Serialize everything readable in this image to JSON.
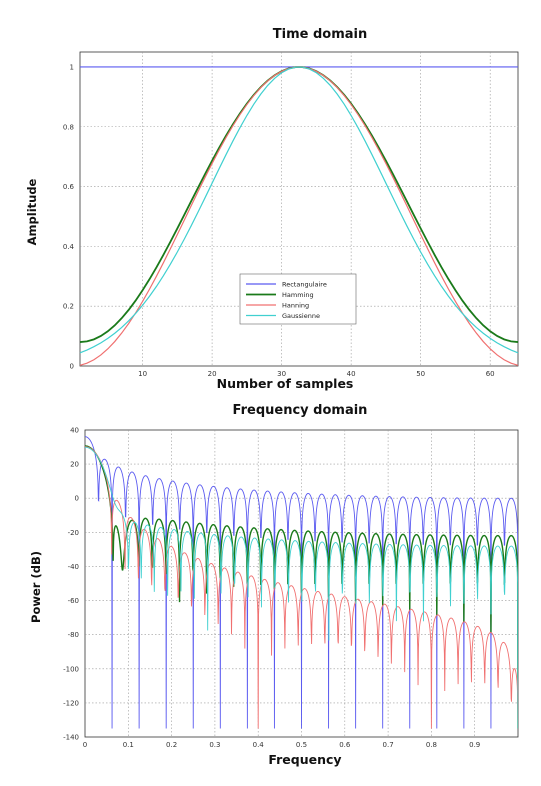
{
  "chart_data": [
    {
      "type": "line",
      "title": "Time domain",
      "xlabel": "Number of samples",
      "ylabel": "Amplitude",
      "xlim": [
        1,
        64
      ],
      "ylim": [
        0,
        1.05
      ],
      "xticks": [
        10,
        20,
        30,
        40,
        50,
        60
      ],
      "yticks": [
        0,
        0.2,
        0.4,
        0.6,
        0.8,
        1
      ],
      "ytick_labels": [
        "0",
        "0.2",
        "0.4",
        "0.6",
        "0.8",
        "1"
      ],
      "grid": true,
      "legend_position": "lower-center",
      "series": [
        {
          "name": "Rectangulaire",
          "color": "#5b5bf0",
          "formula": "rectangular",
          "n": 64
        },
        {
          "name": "Hamming",
          "color": "#1a7a1a",
          "formula": "hamming",
          "n": 64
        },
        {
          "name": "Hanning",
          "color": "#f07070",
          "formula": "hanning",
          "n": 64
        },
        {
          "name": "Gaussienne",
          "color": "#40d0d0",
          "formula": "gaussian",
          "sigma": 0.4,
          "n": 64
        }
      ]
    },
    {
      "type": "line",
      "title": "Frequency domain",
      "xlabel": "Frequency",
      "ylabel": "Power (dB)",
      "xlim": [
        0,
        1
      ],
      "ylim": [
        -140,
        40
      ],
      "xticks": [
        0,
        0.1,
        0.2,
        0.3,
        0.4,
        0.5,
        0.6,
        0.7,
        0.8,
        0.9
      ],
      "xtick_labels": [
        "0",
        "0.1",
        "0.2",
        "0.3",
        "0.4",
        "0.5",
        "0.6",
        "0.7",
        "0.8",
        "0.9"
      ],
      "yticks": [
        -140,
        -120,
        -100,
        -80,
        -60,
        -40,
        -20,
        0,
        20,
        40
      ],
      "ytick_labels": [
        "-140",
        "-120",
        "-100",
        "-80",
        "-60",
        "-40",
        "-20",
        "0",
        "20",
        "40"
      ],
      "grid": true,
      "series": [
        {
          "name": "Rectangulaire",
          "color": "#5b5bf0",
          "formula": "rectangular",
          "n": 64
        },
        {
          "name": "Hamming",
          "color": "#1a7a1a",
          "formula": "hamming",
          "n": 64
        },
        {
          "name": "Hanning",
          "color": "#f07070",
          "formula": "hanning",
          "n": 64
        },
        {
          "name": "Gaussienne",
          "color": "#40d0d0",
          "formula": "gaussian",
          "sigma": 0.4,
          "n": 64
        }
      ]
    }
  ]
}
